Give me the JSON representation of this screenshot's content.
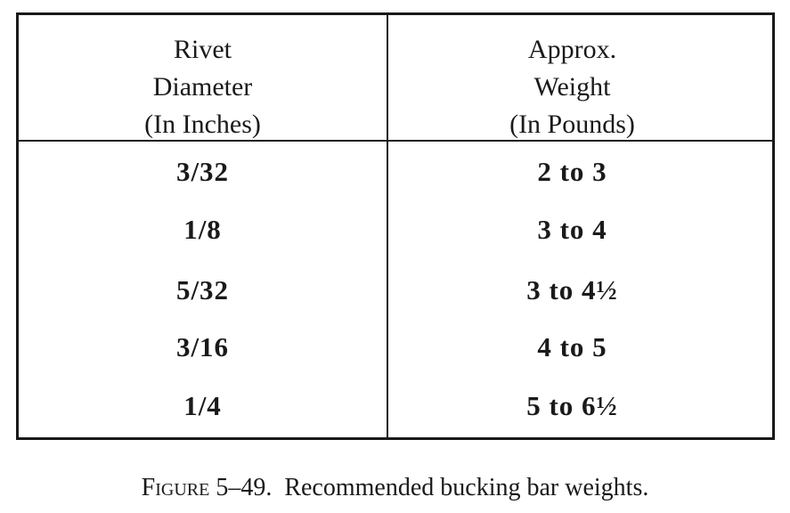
{
  "table": {
    "header": [
      [
        "Rivet",
        "Diameter",
        "(In Inches)"
      ],
      [
        "Approx.",
        "Weight",
        "(In Pounds)"
      ]
    ],
    "rows": [
      [
        "3/32",
        "2 to 3"
      ],
      [
        "1/8",
        "3 to 4"
      ],
      [
        "5/32",
        "3 to 4½"
      ],
      [
        "3/16",
        "4 to 5"
      ],
      [
        "1/4",
        "5 to 6½"
      ]
    ]
  },
  "caption": {
    "label": "Figure 5–49.",
    "text": "Recommended bucking bar weights."
  }
}
